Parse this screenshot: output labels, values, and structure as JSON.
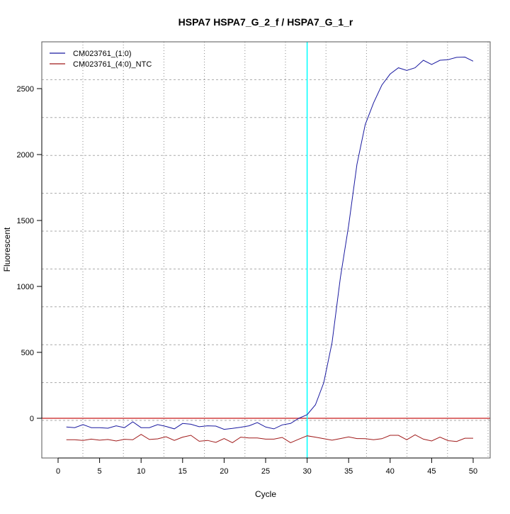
{
  "chart_data": {
    "type": "line",
    "title": "HSPA7  HSPA7_G_2_f / HSPA7_G_1_r",
    "xlabel": "Cycle",
    "ylabel": "Fluorescent",
    "xlim": [
      -2,
      52
    ],
    "ylim": [
      -300,
      2850
    ],
    "xticks": [
      0,
      5,
      10,
      15,
      20,
      25,
      30,
      35,
      40,
      45,
      50
    ],
    "yticks": [
      0,
      500,
      1000,
      1500,
      2000,
      2500
    ],
    "grid": true,
    "legend_position": "top-left",
    "threshold": {
      "value": 0,
      "color": "#d04040"
    },
    "ct_line": {
      "cycle": 30,
      "color": "#00ffff"
    },
    "x": [
      1,
      2,
      3,
      4,
      5,
      6,
      7,
      8,
      9,
      10,
      11,
      12,
      13,
      14,
      15,
      16,
      17,
      18,
      19,
      20,
      21,
      22,
      23,
      24,
      25,
      26,
      27,
      28,
      29,
      30,
      31,
      32,
      33,
      34,
      35,
      36,
      37,
      38,
      39,
      40,
      41,
      42,
      43,
      44,
      45,
      46,
      47,
      48,
      49,
      50
    ],
    "series": [
      {
        "name": "CM023761_(1:0)",
        "color": "#1a1aa0",
        "values": [
          -66,
          -71,
          -48,
          -71,
          -71,
          -75,
          -57,
          -71,
          -27,
          -71,
          -71,
          -48,
          -62,
          -80,
          -39,
          -45,
          -64,
          -57,
          -59,
          -84,
          -77,
          -68,
          -57,
          -32,
          -66,
          -80,
          -50,
          -39,
          0,
          27,
          102,
          269,
          575,
          1065,
          1462,
          1925,
          2227,
          2392,
          2527,
          2611,
          2658,
          2638,
          2658,
          2715,
          2683,
          2715,
          2720,
          2737,
          2739,
          2708
        ]
      },
      {
        "name": "CM023761_(4:0)_NTC",
        "color": "#a01a1a",
        "values": [
          -163,
          -163,
          -168,
          -158,
          -166,
          -161,
          -172,
          -159,
          -163,
          -122,
          -161,
          -156,
          -140,
          -168,
          -143,
          -129,
          -174,
          -168,
          -183,
          -154,
          -185,
          -143,
          -149,
          -149,
          -158,
          -158,
          -145,
          -185,
          -158,
          -133,
          -143,
          -155,
          -166,
          -154,
          -141,
          -154,
          -155,
          -163,
          -155,
          -129,
          -129,
          -163,
          -125,
          -158,
          -172,
          -143,
          -170,
          -176,
          -151,
          -151
        ]
      }
    ]
  }
}
